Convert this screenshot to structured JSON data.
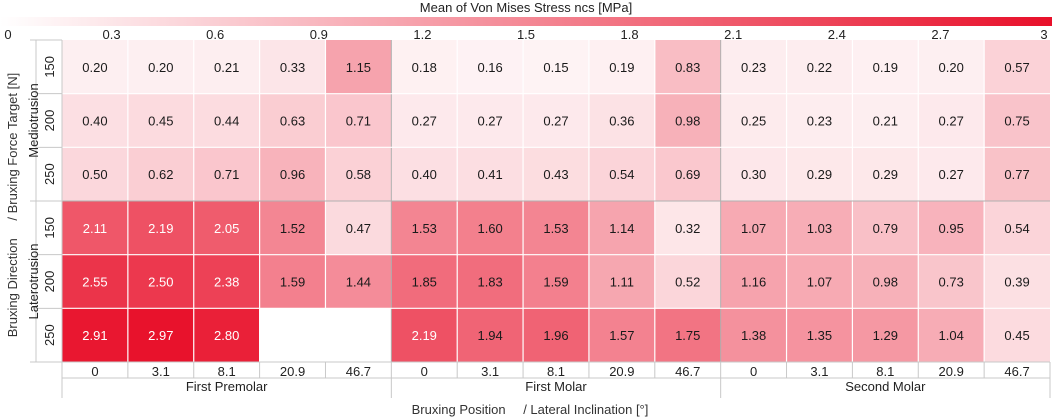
{
  "chart_data": {
    "type": "heatmap",
    "title": "Mean of Von Mises Stress ncs [MPa]",
    "colorbar": {
      "range": [
        0,
        3
      ],
      "ticks": [
        "0",
        "0.3",
        "0.6",
        "0.9",
        "1.2",
        "1.5",
        "1.8",
        "2.1",
        "2.4",
        "2.7",
        "3"
      ],
      "color_low": "#ffffff",
      "color_high": "#e8102a"
    },
    "xlabel": {
      "part1": "Bruxing Position",
      "part2": "/  Lateral Inclination [°]"
    },
    "ylabel": {
      "part1": "Bruxing Direction",
      "part2": "/  Bruxing Force Target [N]"
    },
    "x_groups": [
      "First Premolar",
      "First Molar",
      "Second Molar"
    ],
    "x_ticks": [
      "0",
      "3.1",
      "8.1",
      "20.9",
      "46.7"
    ],
    "y_groups": [
      "Mediotrusion",
      "Laterotrusion"
    ],
    "y_ticks": [
      "150",
      "200",
      "250"
    ],
    "values": [
      [
        0.2,
        0.2,
        0.21,
        0.33,
        1.15,
        0.18,
        0.16,
        0.15,
        0.19,
        0.83,
        0.23,
        0.22,
        0.19,
        0.2,
        0.57
      ],
      [
        0.4,
        0.45,
        0.44,
        0.63,
        0.71,
        0.27,
        0.27,
        0.27,
        0.36,
        0.98,
        0.25,
        0.23,
        0.21,
        0.27,
        0.75
      ],
      [
        0.5,
        0.62,
        0.71,
        0.96,
        0.58,
        0.4,
        0.41,
        0.43,
        0.54,
        0.69,
        0.3,
        0.29,
        0.29,
        0.27,
        0.77
      ],
      [
        2.11,
        2.19,
        2.05,
        1.52,
        0.47,
        1.53,
        1.6,
        1.53,
        1.14,
        0.32,
        1.07,
        1.03,
        0.79,
        0.95,
        0.54
      ],
      [
        2.55,
        2.5,
        2.38,
        1.59,
        1.44,
        1.85,
        1.83,
        1.59,
        1.11,
        0.52,
        1.16,
        1.07,
        0.98,
        0.73,
        0.39
      ],
      [
        2.91,
        2.97,
        2.8,
        null,
        null,
        2.19,
        1.94,
        1.96,
        1.57,
        1.75,
        1.38,
        1.35,
        1.29,
        1.04,
        0.45
      ]
    ],
    "value_format_decimals": 2
  }
}
